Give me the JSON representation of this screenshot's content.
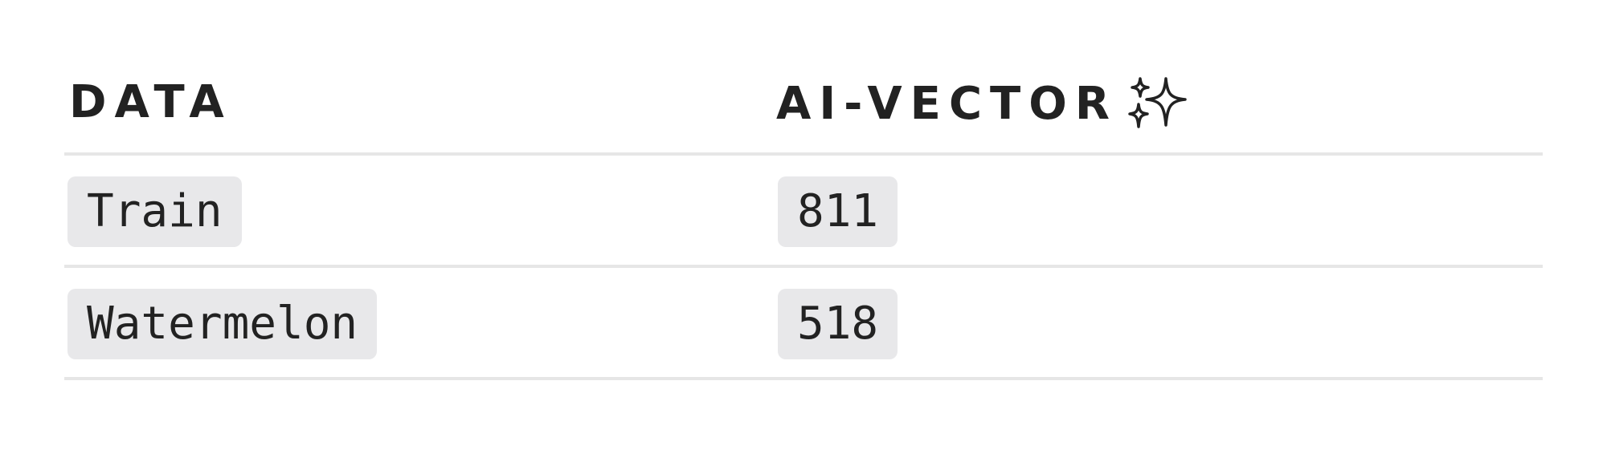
{
  "table": {
    "headers": [
      "DATA",
      "AI-VECTOR"
    ],
    "header_icon": "sparkles-icon",
    "rows": [
      {
        "data": "Train",
        "vector": "811"
      },
      {
        "data": "Watermelon",
        "vector": "518"
      }
    ]
  },
  "colors": {
    "text": "#222222",
    "divider": "#e6e6e6",
    "chip_background": "#e8e8ea"
  }
}
